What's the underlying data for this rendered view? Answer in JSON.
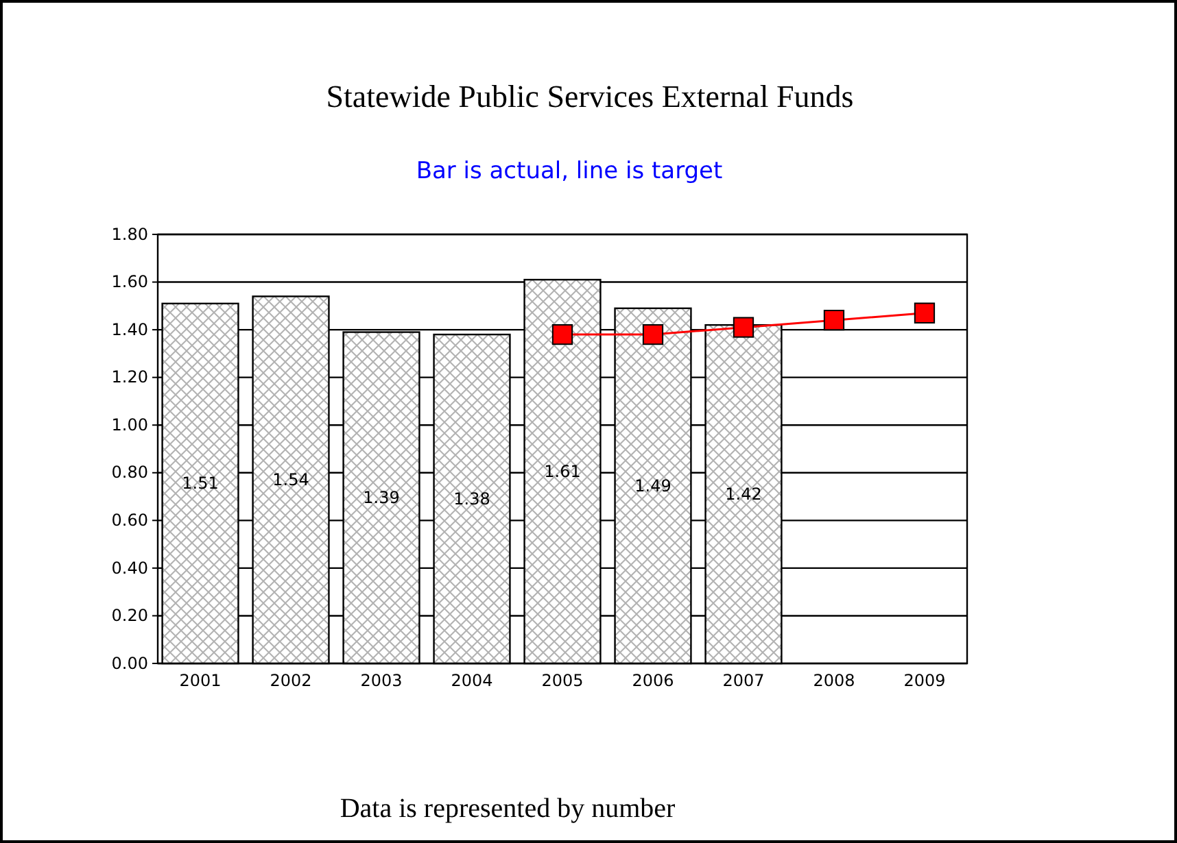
{
  "chart_data": {
    "type": "bar",
    "title": "Statewide Public Services External Funds",
    "subtitle": "Bar is actual, line is target",
    "categories": [
      "2001",
      "2002",
      "2003",
      "2004",
      "2005",
      "2006",
      "2007",
      "2008",
      "2009"
    ],
    "series": [
      {
        "color": "#000000",
        "values": [
          1.51,
          1.54,
          1.39,
          1.38,
          1.61,
          1.49,
          1.42,
          null,
          null
        ],
        "value_labels": [
          "1.51",
          "1.54",
          "1.39",
          "1.38",
          "1.61",
          "1.49",
          "1.42",
          null,
          null
        ]
      },
      {
        "type": "line",
        "color": "#ff0000",
        "marker": "square",
        "values": [
          null,
          null,
          null,
          null,
          1.38,
          1.38,
          1.41,
          1.44,
          1.47
        ]
      }
    ],
    "ylim": [
      0,
      1.8
    ],
    "yticks": [
      {
        "value": 0,
        "label": "0.00"
      },
      {
        "value": 0.2,
        "label": "0.20"
      },
      {
        "value": 0.4,
        "label": "0.40"
      },
      {
        "value": 0.6,
        "label": "0.60"
      },
      {
        "value": 0.8,
        "label": "0.80"
      },
      {
        "value": 1,
        "label": "1.00"
      },
      {
        "value": 1.2,
        "label": "1.20"
      },
      {
        "value": 1.4,
        "label": "1.40"
      },
      {
        "value": 1.6,
        "label": "1.60"
      },
      {
        "value": 1.8,
        "label": "1.80"
      }
    ],
    "grid": "y",
    "annotations": [
      "Data is represented by number"
    ]
  }
}
